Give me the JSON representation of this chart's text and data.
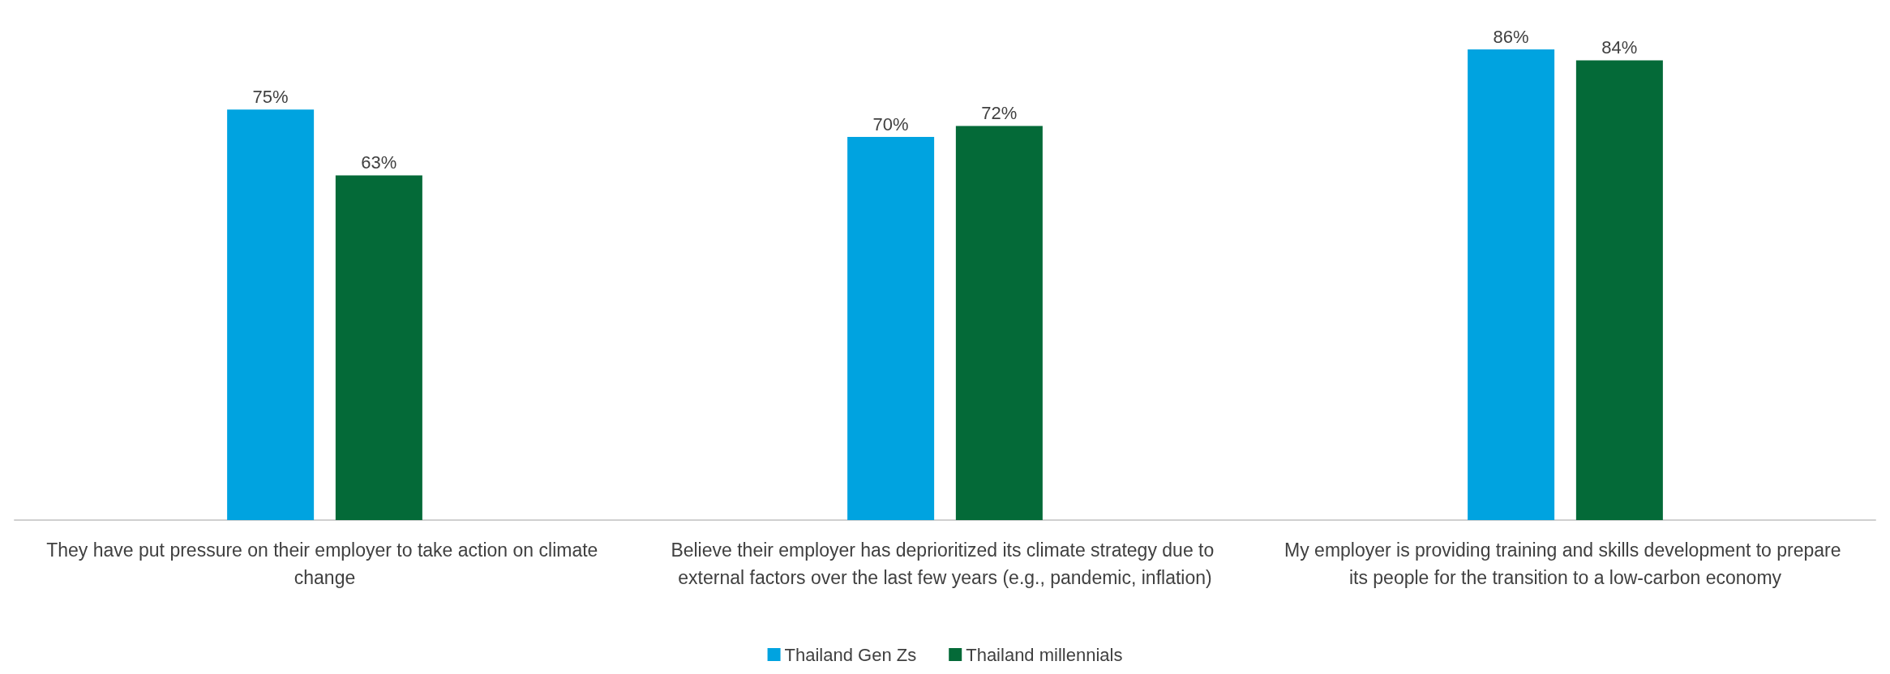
{
  "chart_data": {
    "type": "bar",
    "categories": [
      "They have put pressure on their employer to take action on climate change",
      "Believe their employer has deprioritized its climate strategy due to external factors over the last few years (e.g., pandemic, inflation)",
      "My employer is providing training and skills development to prepare its people for the transition to a low-carbon economy"
    ],
    "series": [
      {
        "name": "Thailand Gen Zs",
        "color": "#00a3e0",
        "values": [
          75,
          70,
          86
        ],
        "value_labels": [
          "75%",
          "70%",
          "86%"
        ]
      },
      {
        "name": "Thailand millennials",
        "color": "#046a38",
        "values": [
          63,
          72,
          84
        ],
        "value_labels": [
          "63%",
          "72%",
          "84%"
        ]
      }
    ],
    "legend": "bottom",
    "grid": false
  }
}
